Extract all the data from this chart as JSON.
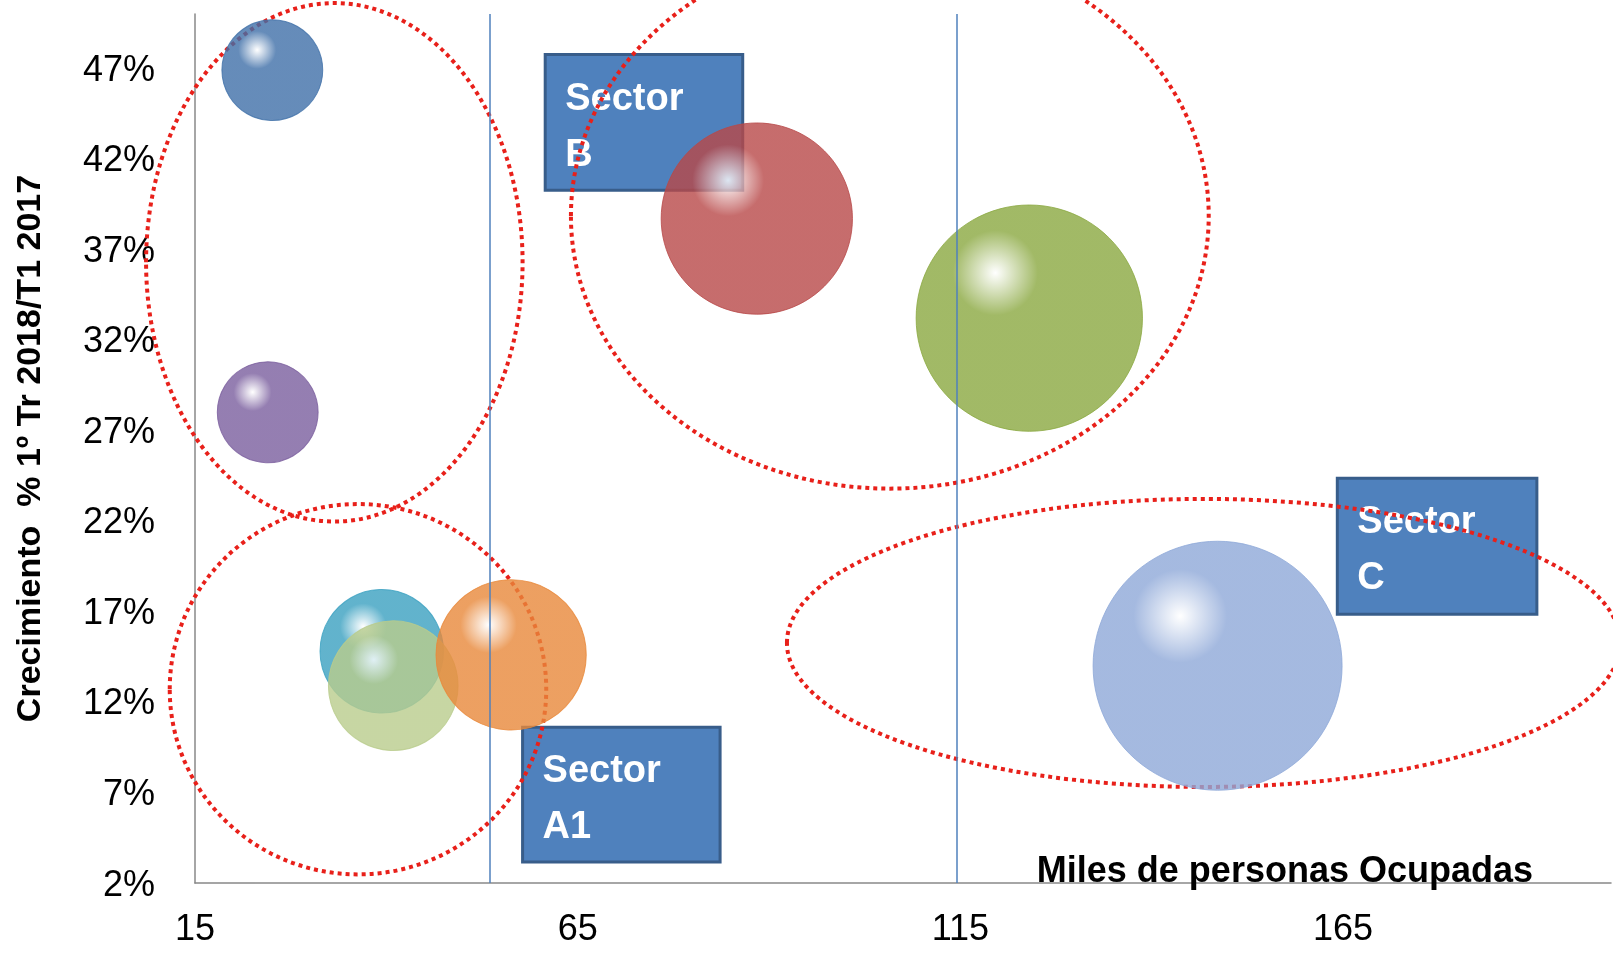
{
  "chart_data": {
    "type": "bubble",
    "xlabel": "Miles de personas Ocupadas",
    "ylabel": "Crecimiento  % 1º Tr 2018/T1 2017",
    "xlim": [
      15,
      200
    ],
    "xticks": [
      15,
      65,
      115,
      165
    ],
    "ylim": [
      2,
      50
    ],
    "yticks": [
      {
        "value": 2,
        "label": "2%"
      },
      {
        "value": 7,
        "label": "7%"
      },
      {
        "value": 12,
        "label": "12%"
      },
      {
        "value": 17,
        "label": "17%"
      },
      {
        "value": 22,
        "label": "22%"
      },
      {
        "value": 27,
        "label": "27%"
      },
      {
        "value": 32,
        "label": "32%"
      },
      {
        "value": 37,
        "label": "37%"
      },
      {
        "value": 42,
        "label": "42%"
      },
      {
        "value": 47,
        "label": "47%"
      }
    ],
    "x": [
      25.1,
      24.5,
      39.4,
      40.9,
      56.3,
      88.4,
      124,
      148.6
    ],
    "values": [
      46.9,
      28,
      14.8,
      12.9,
      14.6,
      38.7,
      33.2,
      14
    ],
    "sizes": [
      0.164,
      0.164,
      0.246,
      0.271,
      0.364,
      0.59,
      0.826,
      1
    ],
    "colors": [
      "#3f6fa8",
      "#7a5e9e",
      "#3aa0c0",
      "#b9cc8c",
      "#e8883a",
      "#b84848",
      "#8aa840",
      "#8ea8d8"
    ],
    "ref_lines": [
      {
        "axis": "x",
        "value": 53.5,
        "color": "#4f81bd"
      },
      {
        "axis": "x",
        "value": 114.5,
        "color": "#4f81bd"
      }
    ],
    "annotations": [
      "Sector B",
      "Sector A1",
      "Sector C"
    ],
    "grid": false
  }
}
